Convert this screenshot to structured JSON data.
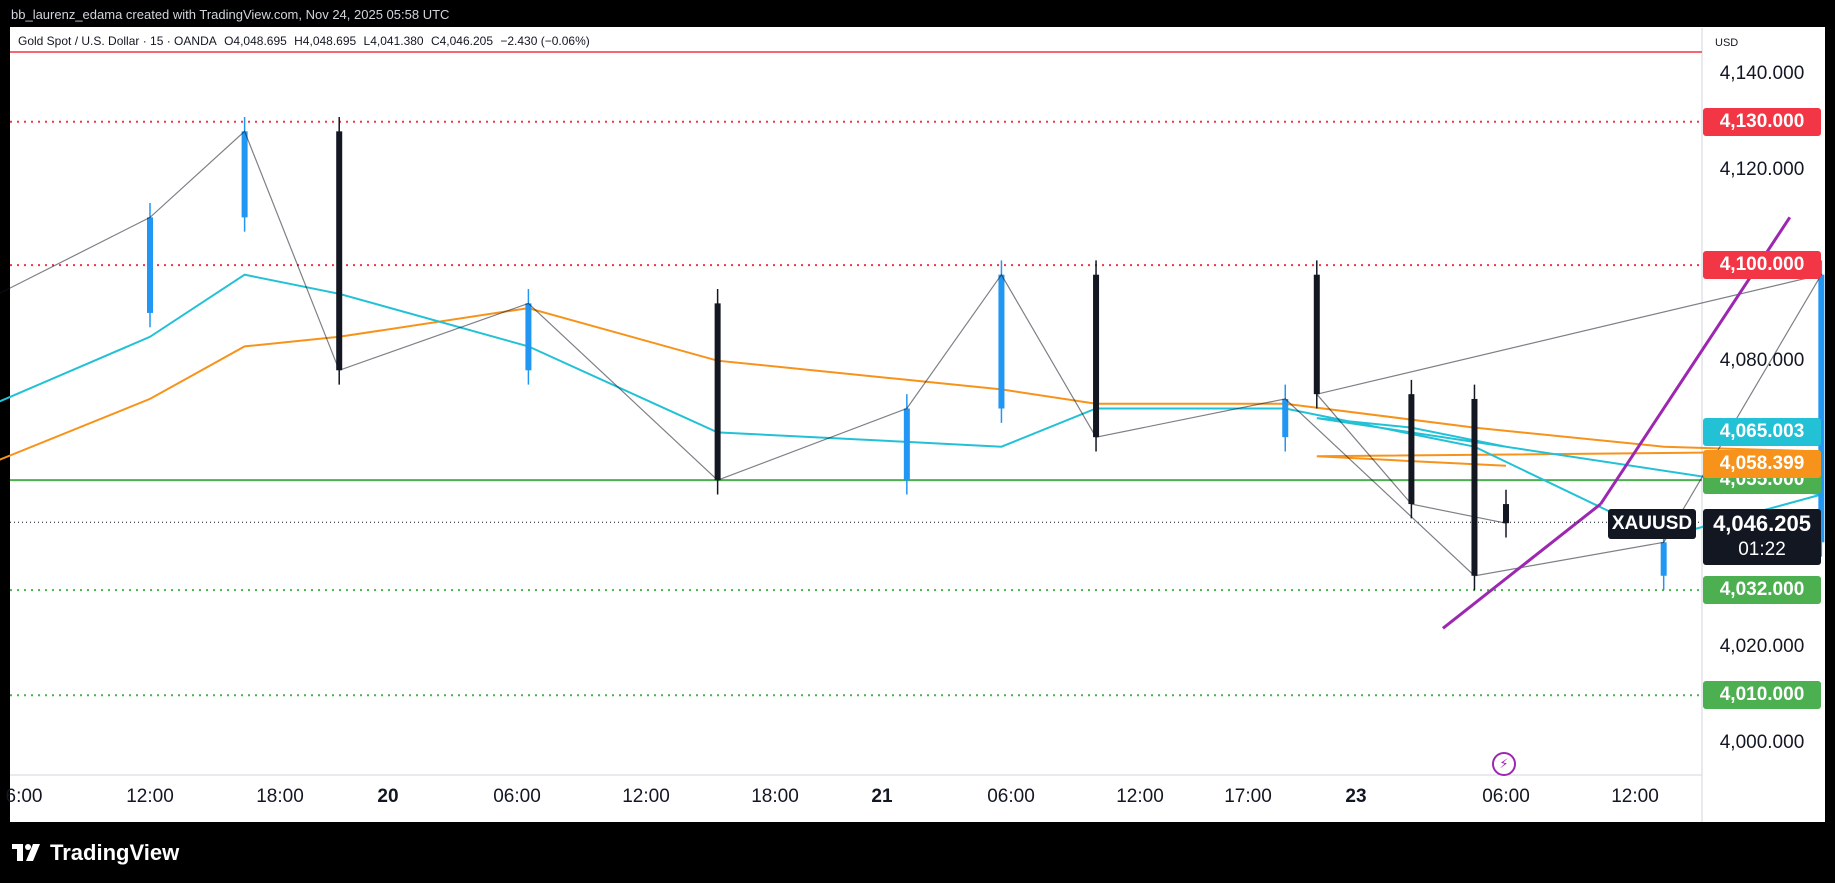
{
  "header": {
    "credit": "bb_laurenz_edama created with TradingView.com, Nov 24, 2025 05:58 UTC"
  },
  "legend": {
    "symbol": "Gold Spot / U.S. Dollar · 15 · OANDA",
    "open": "O4,048.695",
    "high": "H4,048.695",
    "low": "L4,041.380",
    "close": "C4,046.205",
    "change": "−2.430 (−0.06%)"
  },
  "axis": {
    "currency": "USD",
    "y_ticks": [
      "4,140.000",
      "4,120.000",
      "4,080.000",
      "4,020.000",
      "4,000.000"
    ],
    "x_ticks": [
      {
        "label": "6:00",
        "bold": false
      },
      {
        "label": "12:00",
        "bold": false
      },
      {
        "label": "18:00",
        "bold": false
      },
      {
        "label": "20",
        "bold": true
      },
      {
        "label": "06:00",
        "bold": false
      },
      {
        "label": "12:00",
        "bold": false
      },
      {
        "label": "18:00",
        "bold": false
      },
      {
        "label": "21",
        "bold": true
      },
      {
        "label": "06:00",
        "bold": false
      },
      {
        "label": "12:00",
        "bold": false
      },
      {
        "label": "17:00",
        "bold": false
      },
      {
        "label": "23",
        "bold": true
      },
      {
        "label": "06:00",
        "bold": false
      },
      {
        "label": "12:00",
        "bold": false
      }
    ]
  },
  "levels": [
    {
      "label": "4,130.000",
      "color": "#f23645",
      "style": "dotted"
    },
    {
      "label": "4,100.000",
      "color": "#f23645",
      "style": "dotted"
    },
    {
      "label": "4,055.000",
      "color": "#4caf50",
      "style": "solid"
    },
    {
      "label": "4,032.000",
      "color": "#4caf50",
      "style": "dotted"
    },
    {
      "label": "4,010.000",
      "color": "#4caf50",
      "style": "dotted"
    }
  ],
  "indicator_tags": [
    {
      "label": "4,065.003",
      "color": "#22c1d6"
    },
    {
      "label": "4,058.399",
      "color": "#f7931a"
    }
  ],
  "current": {
    "symbol": "XAUUSD",
    "price": "4,046.205",
    "countdown": "01:22"
  },
  "brand": {
    "name": "TradingView"
  },
  "colors": {
    "up": "#2196f3",
    "down": "#131722",
    "ma_fast": "#22c1d6",
    "ma_slow": "#f7931a",
    "triangle": "#9c27b0"
  },
  "chart_data": {
    "type": "line",
    "title": "Gold Spot / U.S. Dollar · 15 · OANDA",
    "ylim": [
      3993,
      4145
    ],
    "x": [
      "Nov 19 06:00",
      "Nov 19 12:00",
      "Nov 19 15:00",
      "Nov 19 18:00",
      "Nov 20 00:00",
      "Nov 20 06:00",
      "Nov 20 12:00",
      "Nov 20 15:00",
      "Nov 20 18:00",
      "Nov 21 00:00",
      "Nov 21 06:00",
      "Nov 21 12:00",
      "Nov 21 17:00",
      "Nov 23 00:00",
      "Nov 23 03:00",
      "Nov 23 06:00"
    ],
    "series": [
      {
        "name": "",
        "values": [
          4090,
          4110,
          4128,
          4078,
          4092,
          4055,
          4070,
          4098,
          4064,
          4072,
          4035,
          4042,
          4098,
          4073,
          4050,
          4046
        ]
      }
    ],
    "ma_fast": [
      4068,
      4085,
      4098,
      4094,
      4083,
      4065,
      4063,
      4062,
      4070,
      4070,
      4062,
      4043,
      4052,
      4068,
      4066,
      4062
    ],
    "ma_slow": [
      4056,
      4072,
      4083,
      4085,
      4091,
      4080,
      4076,
      4074,
      4071,
      4071,
      4066,
      4062,
      4061,
      4060,
      4059,
      4058
    ],
    "trendlines": [
      {
        "from": [
          "Nov 21 16:00",
          4110
        ],
        "to": [
          "Nov 23 09:00",
          4050
        ]
      },
      {
        "from": [
          "Nov 21 05:00",
          4024
        ],
        "to": [
          "Nov 23 09:00",
          4050
        ]
      }
    ],
    "annotations": [
      "4,130.000",
      "4,100.000",
      "4,055.000",
      "4,032.000",
      "4,010.000"
    ],
    "grid": false
  }
}
